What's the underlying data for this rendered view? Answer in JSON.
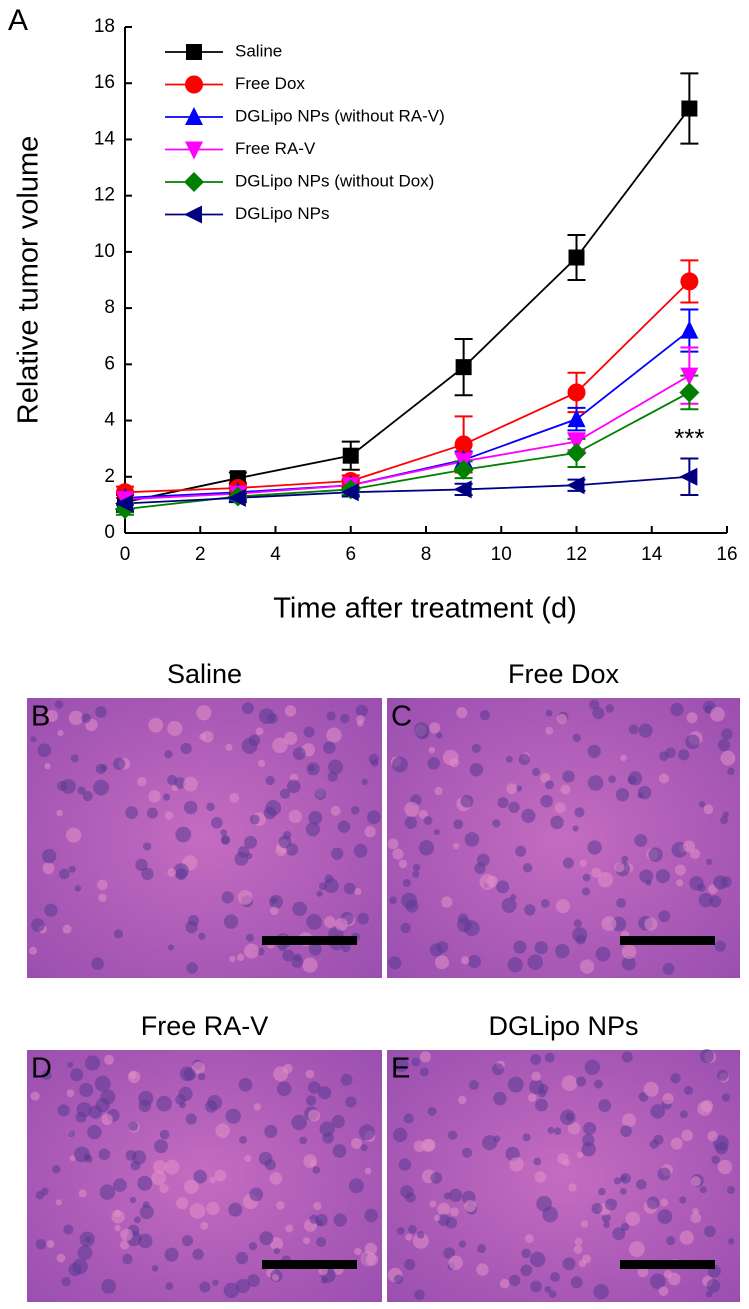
{
  "panel_label": "A",
  "chart_data": {
    "type": "line",
    "x_label": "Time after treatment (d)",
    "y_label": "Relative tumor volume",
    "x": [
      0,
      3,
      6,
      9,
      12,
      15
    ],
    "xlim": [
      0,
      16
    ],
    "xticks": [
      0,
      2,
      4,
      6,
      8,
      10,
      12,
      14,
      16
    ],
    "ylim": [
      0,
      18
    ],
    "yticks": [
      0,
      2,
      4,
      6,
      8,
      10,
      12,
      14,
      16,
      18
    ],
    "legend": "upper left",
    "series": [
      {
        "name": "Saline",
        "color": "#000000",
        "marker": "square",
        "values": [
          1.1,
          1.95,
          2.75,
          5.9,
          9.8,
          15.1
        ],
        "errors": [
          0.3,
          0.2,
          0.5,
          1.0,
          0.8,
          1.25
        ]
      },
      {
        "name": "Free Dox",
        "color": "#ff0000",
        "marker": "circle",
        "values": [
          1.45,
          1.6,
          1.85,
          3.15,
          5.0,
          8.95
        ],
        "errors": [
          0.2,
          0.2,
          0.2,
          1.0,
          0.7,
          0.75
        ]
      },
      {
        "name": "DGLipo NPs (without RA-V)",
        "color": "#0000ff",
        "marker": "triangle-up",
        "values": [
          1.25,
          1.45,
          1.7,
          2.6,
          4.05,
          7.2
        ],
        "errors": [
          0.2,
          0.2,
          0.2,
          0.3,
          0.4,
          0.75
        ]
      },
      {
        "name": "Free RA-V",
        "color": "#ff00ff",
        "marker": "triangle-down",
        "values": [
          1.2,
          1.4,
          1.7,
          2.55,
          3.25,
          5.6
        ],
        "errors": [
          0.2,
          0.2,
          0.2,
          0.3,
          0.3,
          1.0
        ]
      },
      {
        "name": "DGLipo NPs (without Dox)",
        "color": "#008000",
        "marker": "diamond",
        "values": [
          0.85,
          1.3,
          1.55,
          2.25,
          2.85,
          5.0
        ],
        "errors": [
          0.2,
          0.15,
          0.2,
          0.3,
          0.5,
          0.6
        ]
      },
      {
        "name": "DGLipo NPs",
        "color": "#000080",
        "marker": "triangle-left",
        "values": [
          1.05,
          1.25,
          1.45,
          1.55,
          1.7,
          2.0
        ],
        "errors": [
          0.3,
          0.15,
          0.15,
          0.2,
          0.2,
          0.65
        ]
      }
    ],
    "annotations": [
      {
        "text": "***",
        "x": 15,
        "y": 3.3
      }
    ]
  },
  "images": [
    {
      "label": "B",
      "title": "Saline"
    },
    {
      "label": "C",
      "title": "Free Dox"
    },
    {
      "label": "D",
      "title": "Free RA-V"
    },
    {
      "label": "E",
      "title": "DGLipo NPs"
    }
  ]
}
